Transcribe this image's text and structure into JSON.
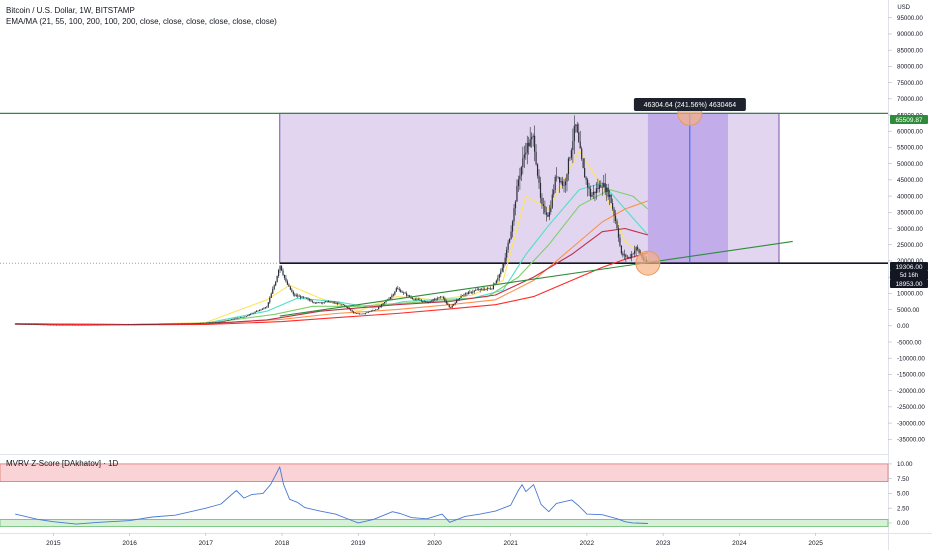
{
  "header": {
    "symbol": "Bitcoin / U.S. Dollar, 1W, BITSTAMP",
    "indicator": "EMA/MA (21, 55, 100, 200, 100, 200, close, close, close, close, close, close)",
    "currency": "USD"
  },
  "colors": {
    "measure_fill": "#d8c7ea",
    "measure_border": "#7a52a8",
    "projection": "#a78be6",
    "green_line": "#2e8b3a",
    "black_line": "#131722",
    "candle": "#2a2e39",
    "ema21": "#ffe35c",
    "ema55": "#4fe0c8",
    "ema100": "#7ccf6a",
    "ema200": "#ff8f4a",
    "ma100": "#c0304a",
    "ma200": "#ff2a2a",
    "mvrv_line": "#4a78d6",
    "mvrv_red_zone": "#f9d3d5",
    "mvrv_green_zone": "#d7f0d8"
  },
  "measure": {
    "label": "46304.64 (241.56%) 4630464"
  },
  "price_badges": {
    "top": "65509.87",
    "current": "19306.00",
    "countdown": "5d 16h",
    "support": "18953.00"
  },
  "chart_data": [
    {
      "type": "line",
      "title": "Bitcoin / U.S. Dollar, 1W, BITSTAMP",
      "ylabel": "USD",
      "ylim": [
        -38000,
        98000
      ],
      "xlim": [
        2014.3,
        2025.95
      ],
      "grid": false,
      "y_ticks": [
        "95000.00",
        "90000.00",
        "85000.00",
        "80000.00",
        "75000.00",
        "70000.00",
        "65000.00",
        "60000.00",
        "55000.00",
        "50000.00",
        "45000.00",
        "40000.00",
        "35000.00",
        "30000.00",
        "25000.00",
        "20000.00",
        "15000.00",
        "10000.00",
        "5000.00",
        "0.00",
        "-5000.00",
        "-10000.00",
        "-15000.00",
        "-20000.00",
        "-25000.00",
        "-30000.00",
        "-35000.00"
      ],
      "x_ticks": [
        "2015",
        "2016",
        "2017",
        "2018",
        "2019",
        "2020",
        "2021",
        "2022",
        "2023",
        "2024",
        "2025"
      ],
      "price_series": {
        "name": "BTCUSD",
        "x": [
          2014.5,
          2014.8,
          2015.0,
          2015.3,
          2015.6,
          2015.9,
          2016.2,
          2016.5,
          2016.8,
          2017.0,
          2017.2,
          2017.4,
          2017.5,
          2017.65,
          2017.8,
          2017.92,
          2017.97,
          2018.05,
          2018.15,
          2018.3,
          2018.45,
          2018.6,
          2018.8,
          2018.95,
          2019.05,
          2019.25,
          2019.45,
          2019.5,
          2019.7,
          2019.9,
          2020.1,
          2020.2,
          2020.35,
          2020.55,
          2020.75,
          2020.9,
          2021.0,
          2021.1,
          2021.2,
          2021.3,
          2021.4,
          2021.5,
          2021.6,
          2021.7,
          2021.85,
          2021.95,
          2022.05,
          2022.2,
          2022.3,
          2022.4,
          2022.45,
          2022.55,
          2022.65,
          2022.75,
          2022.8
        ],
        "y": [
          600,
          380,
          250,
          240,
          270,
          380,
          420,
          650,
          700,
          990,
          1200,
          2400,
          2700,
          4300,
          5800,
          14000,
          19000,
          13500,
          9500,
          8500,
          7000,
          7500,
          6500,
          3900,
          3600,
          5200,
          9500,
          11500,
          8500,
          7200,
          9000,
          5400,
          9300,
          11000,
          11500,
          18000,
          29000,
          45000,
          55000,
          58000,
          37000,
          34000,
          47000,
          43000,
          62000,
          48000,
          40000,
          44000,
          40000,
          30000,
          22000,
          21000,
          24000,
          20000,
          19300
        ]
      },
      "ema_lines": [
        {
          "color_key": "ema21",
          "x": [
            2014.5,
            2016.0,
            2017.0,
            2017.8,
            2018.1,
            2018.5,
            2019.0,
            2019.5,
            2020.0,
            2020.5,
            2020.9,
            2021.2,
            2021.5,
            2021.9,
            2022.2,
            2022.5,
            2022.8
          ],
          "y": [
            600,
            400,
            1000,
            8000,
            12500,
            8500,
            4500,
            9000,
            8000,
            9500,
            14000,
            40000,
            36000,
            54000,
            43000,
            26000,
            21000
          ]
        },
        {
          "color_key": "ema55",
          "x": [
            2014.5,
            2016.0,
            2017.0,
            2017.8,
            2018.2,
            2018.7,
            2019.2,
            2019.6,
            2020.0,
            2020.5,
            2020.9,
            2021.2,
            2021.5,
            2021.9,
            2022.2,
            2022.5,
            2022.8
          ],
          "y": [
            600,
            400,
            800,
            4500,
            8500,
            7500,
            5500,
            7500,
            8000,
            8500,
            11000,
            22000,
            31000,
            42000,
            44000,
            36000,
            28000
          ]
        },
        {
          "color_key": "ema100",
          "x": [
            2014.5,
            2016.0,
            2017.0,
            2017.9,
            2018.4,
            2019.0,
            2019.6,
            2020.2,
            2020.7,
            2021.1,
            2021.5,
            2021.9,
            2022.3,
            2022.6,
            2022.8
          ],
          "y": [
            600,
            400,
            700,
            3500,
            6000,
            6000,
            7000,
            7800,
            9000,
            15000,
            25000,
            37000,
            42000,
            40000,
            36000
          ]
        },
        {
          "color_key": "ema200",
          "x": [
            2014.5,
            2016.0,
            2017.0,
            2018.0,
            2018.7,
            2019.5,
            2020.2,
            2020.8,
            2021.3,
            2021.8,
            2022.2,
            2022.5,
            2022.8
          ],
          "y": [
            600,
            400,
            600,
            2000,
            3800,
            5000,
            6500,
            8000,
            14000,
            24000,
            32000,
            36000,
            38500
          ]
        },
        {
          "color_key": "ma100",
          "x": [
            2014.5,
            2016.0,
            2017.0,
            2017.8,
            2018.5,
            2019.0,
            2019.5,
            2020.2,
            2020.8,
            2021.3,
            2021.8,
            2022.2,
            2022.5,
            2022.8
          ],
          "y": [
            600,
            400,
            600,
            1800,
            4500,
            5500,
            6500,
            7500,
            9500,
            15000,
            22000,
            29000,
            30000,
            28000
          ]
        },
        {
          "color_key": "ma200",
          "x": [
            2014.5,
            2016.0,
            2017.0,
            2018.0,
            2018.7,
            2019.5,
            2020.2,
            2020.8,
            2021.3,
            2021.8,
            2022.2,
            2022.5,
            2022.8
          ],
          "y": [
            500,
            300,
            400,
            1300,
            2500,
            3800,
            5200,
            6500,
            9000,
            14000,
            18000,
            20500,
            22500
          ]
        }
      ],
      "measure_box": {
        "x": [
          2017.97,
          2024.52
        ],
        "y": [
          19306.0,
          65509.87
        ]
      },
      "projection_box": {
        "x": [
          2022.8,
          2023.85
        ],
        "y": [
          19306.0,
          65509.87
        ],
        "target_x": 2023.35
      },
      "trendline": {
        "x": [
          2017.97,
          2024.7
        ],
        "y": [
          3000,
          26000
        ]
      },
      "support_level": 19306.0,
      "highlights": [
        {
          "x": 2022.8,
          "y": 19300
        },
        {
          "x": 2023.35,
          "y": 65509.87
        }
      ]
    },
    {
      "type": "line",
      "title": "MVRV Z-Score [DAkhatov] · 1D",
      "ylim": [
        -1.2,
        11
      ],
      "y_ticks": [
        "10.00",
        "7.50",
        "5.00",
        "2.50",
        "0.00"
      ],
      "red_zone": [
        7,
        10
      ],
      "green_zone": [
        -0.6,
        0.6
      ],
      "series": [
        {
          "x": [
            2014.5,
            2014.8,
            2015.0,
            2015.3,
            2015.6,
            2016.0,
            2016.3,
            2016.6,
            2017.0,
            2017.2,
            2017.4,
            2017.5,
            2017.6,
            2017.75,
            2017.85,
            2017.92,
            2017.97,
            2018.02,
            2018.1,
            2018.2,
            2018.3,
            2018.5,
            2018.7,
            2018.9,
            2019.0,
            2019.2,
            2019.45,
            2019.55,
            2019.7,
            2019.9,
            2020.1,
            2020.2,
            2020.4,
            2020.6,
            2020.8,
            2021.0,
            2021.1,
            2021.15,
            2021.2,
            2021.3,
            2021.4,
            2021.5,
            2021.6,
            2021.8,
            2021.9,
            2022.0,
            2022.2,
            2022.4,
            2022.5,
            2022.6,
            2022.8
          ],
          "y": [
            1.5,
            0.6,
            0.2,
            -0.2,
            0.1,
            0.4,
            1.0,
            1.3,
            2.5,
            3.2,
            5.5,
            4.2,
            4.8,
            5.0,
            6.5,
            8.2,
            9.5,
            6.5,
            4.0,
            3.5,
            2.6,
            2.0,
            1.5,
            0.5,
            0.0,
            0.6,
            1.9,
            1.6,
            0.9,
            0.7,
            1.5,
            0.1,
            1.1,
            1.5,
            2.0,
            3.0,
            5.5,
            6.5,
            5.3,
            6.5,
            3.1,
            1.9,
            3.3,
            3.9,
            2.8,
            1.5,
            1.4,
            0.7,
            0.2,
            0.0,
            -0.1
          ]
        }
      ]
    }
  ]
}
